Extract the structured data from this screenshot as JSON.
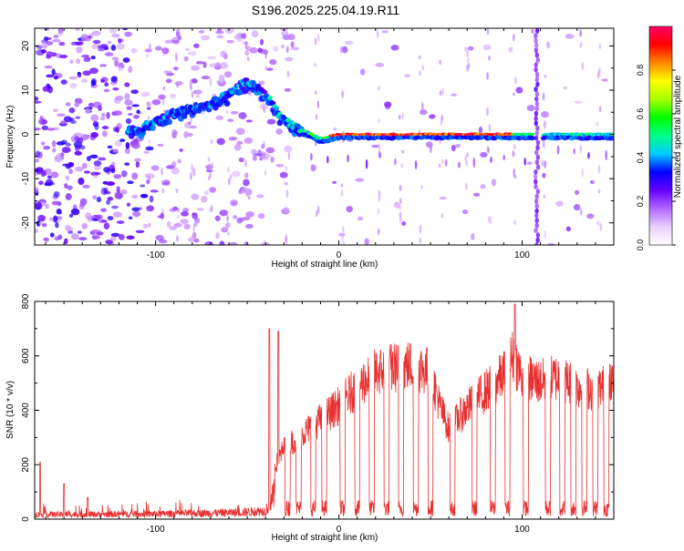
{
  "title": "S196.2025.225.04.19.R11",
  "chart_data": [
    {
      "type": "heatmap",
      "xlabel": "Height of straight line (km)",
      "ylabel": "Frequency (Hz)",
      "xlim": [
        -166,
        150
      ],
      "ylim": [
        -25,
        24
      ],
      "xticks": [
        -100,
        0,
        100
      ],
      "yticks": [
        -20,
        -10,
        0,
        10,
        20
      ],
      "colorbar": {
        "label": "Normalized spectral amplitude",
        "range": [
          0,
          1
        ],
        "ticks": [
          "0.0",
          "0.2",
          "0.4",
          "0.6",
          "0.8"
        ],
        "colormap": [
          "#ffffff",
          "#e8d0ff",
          "#b266ff",
          "#6600ff",
          "#0000ff",
          "#00ccff",
          "#00ff88",
          "#00ff00",
          "#aaff00",
          "#ffff00",
          "#ff8800",
          "#ff0000",
          "#ff0066"
        ]
      },
      "ridge": {
        "x": [
          -110,
          -100,
          -90,
          -80,
          -70,
          -60,
          -55,
          -50,
          -45,
          -40,
          -35,
          -30,
          -25,
          -20,
          -15,
          -10,
          0,
          20,
          50,
          80,
          100,
          110,
          150
        ],
        "y": [
          1,
          3,
          5,
          6,
          7,
          9,
          11,
          12,
          11,
          9,
          6,
          3,
          2,
          1,
          0,
          -1,
          0,
          0,
          0,
          0,
          0,
          0,
          0
        ]
      },
      "vertical_streak_x": 108
    },
    {
      "type": "line",
      "xlabel": "Height of straight line (km)",
      "ylabel": "SNR (10 * v/v)",
      "xlim": [
        -166,
        150
      ],
      "ylim": [
        0,
        800
      ],
      "xticks": [
        -100,
        0,
        100
      ],
      "yticks": [
        0,
        200,
        400,
        600,
        800
      ],
      "color": "#e83030",
      "envelope_x": [
        -166,
        -150,
        -100,
        -60,
        -40,
        -35,
        -30,
        -20,
        -10,
        0,
        10,
        20,
        30,
        40,
        50,
        55,
        60,
        70,
        80,
        90,
        95,
        100,
        110,
        120,
        130,
        140,
        150
      ],
      "envelope_y": [
        40,
        40,
        45,
        55,
        70,
        220,
        300,
        360,
        420,
        480,
        560,
        620,
        640,
        650,
        620,
        480,
        380,
        470,
        540,
        610,
        690,
        600,
        580,
        600,
        560,
        550,
        570
      ],
      "spikes": [
        {
          "x": -163,
          "y": 210
        },
        {
          "x": -150,
          "y": 130
        },
        {
          "x": -137,
          "y": 80
        },
        {
          "x": -38,
          "y": 700
        },
        {
          "x": -33,
          "y": 690
        },
        {
          "x": 96,
          "y": 790
        }
      ]
    }
  ]
}
